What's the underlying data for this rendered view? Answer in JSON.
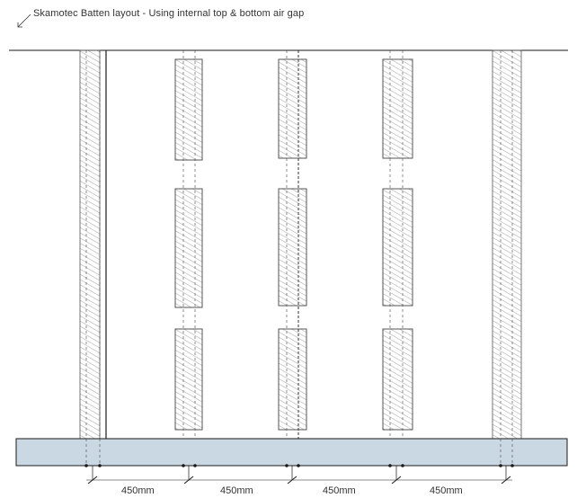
{
  "title": "Skamotec Batten layout - Using internal top & bottom air gap",
  "dimensions": {
    "labels": [
      "450mm",
      "450mm",
      "450mm",
      "450mm"
    ]
  },
  "colors": {
    "line": "#1a1a1a",
    "hatch": "#7a7a7a",
    "batten_fill": "#f3f3f3",
    "base_fill": "#c9d8e2"
  }
}
